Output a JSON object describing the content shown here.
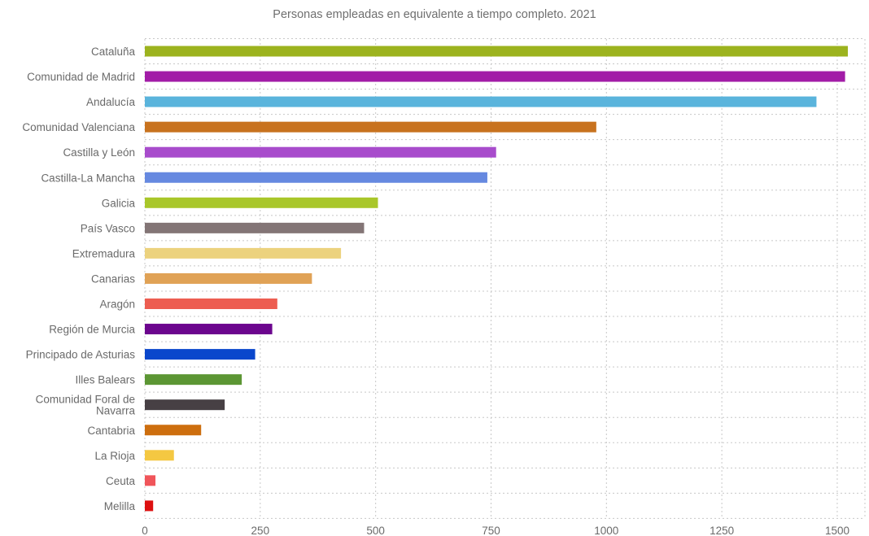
{
  "chart_data": {
    "type": "bar",
    "orientation": "horizontal",
    "title": "Personas empleadas en equivalente a tiempo completo. 2021",
    "xlabel": "",
    "ylabel": "",
    "xlim": [
      0,
      1560
    ],
    "xticks": [
      0,
      250,
      500,
      750,
      1000,
      1250,
      1500
    ],
    "grid": true,
    "legend": "none",
    "categories": [
      "Cataluña",
      "Comunidad de Madrid",
      "Andalucía",
      "Comunidad Valenciana",
      "Castilla y León",
      "Castilla-La Mancha",
      "Galicia",
      "País Vasco",
      "Extremadura",
      "Canarias",
      "Aragón",
      "Región de Murcia",
      "Principado de Asturias",
      "Illes Balears",
      "Comunidad Foral de Navarra",
      "Cantabria",
      "La Rioja",
      "Ceuta",
      "Melilla"
    ],
    "category_lines": [
      [
        "Cataluña"
      ],
      [
        "Comunidad de Madrid"
      ],
      [
        "Andalucía"
      ],
      [
        "Comunidad Valenciana"
      ],
      [
        "Castilla y León"
      ],
      [
        "Castilla-La Mancha"
      ],
      [
        "Galicia"
      ],
      [
        "País Vasco"
      ],
      [
        "Extremadura"
      ],
      [
        "Canarias"
      ],
      [
        "Aragón"
      ],
      [
        "Región de Murcia"
      ],
      [
        "Principado de Asturias"
      ],
      [
        "Illes Balears"
      ],
      [
        "Comunidad Foral de",
        "Navarra"
      ],
      [
        "Cantabria"
      ],
      [
        "La Rioja"
      ],
      [
        "Ceuta"
      ],
      [
        "Melilla"
      ]
    ],
    "values": [
      1523,
      1517,
      1455,
      978,
      761,
      742,
      505,
      475,
      425,
      362,
      287,
      276,
      239,
      210,
      173,
      122,
      63,
      23,
      18
    ],
    "colors": [
      "#9cb31e",
      "#a21ca7",
      "#5ab4dc",
      "#c8721e",
      "#a84ccc",
      "#6689e0",
      "#a9c72a",
      "#837576",
      "#ecd27e",
      "#e0a256",
      "#ed5d51",
      "#6c068e",
      "#0a47cc",
      "#5c9634",
      "#474044",
      "#cd6e0e",
      "#f4c842",
      "#f0555a",
      "#dd1010"
    ]
  }
}
